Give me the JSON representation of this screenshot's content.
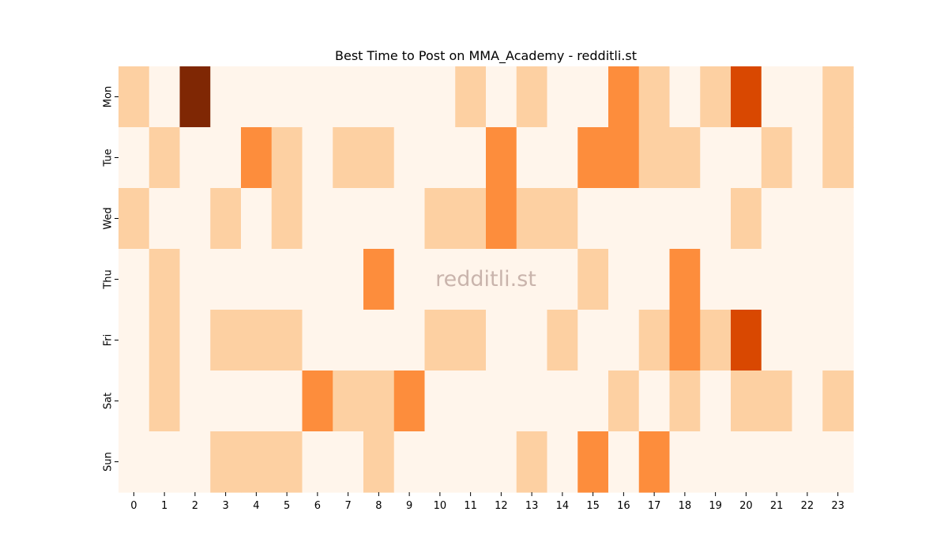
{
  "chart_data": {
    "type": "heatmap",
    "title": "Best Time to Post on MMA_Academy - redditli.st",
    "watermark": "redditli.st",
    "xlabel": "",
    "ylabel": "",
    "x_categories": [
      "0",
      "1",
      "2",
      "3",
      "4",
      "5",
      "6",
      "7",
      "8",
      "9",
      "10",
      "11",
      "12",
      "13",
      "14",
      "15",
      "16",
      "17",
      "18",
      "19",
      "20",
      "21",
      "22",
      "23"
    ],
    "y_categories": [
      "Mon",
      "Tue",
      "Wed",
      "Thu",
      "Fri",
      "Sat",
      "Sun"
    ],
    "values": [
      [
        1,
        0,
        4,
        0,
        0,
        0,
        0,
        0,
        0,
        0,
        0,
        1,
        0,
        1,
        0,
        0,
        2,
        1,
        0,
        1,
        3,
        0,
        0,
        1
      ],
      [
        0,
        1,
        0,
        0,
        2,
        1,
        0,
        1,
        1,
        0,
        0,
        0,
        2,
        0,
        0,
        2,
        2,
        1,
        1,
        0,
        0,
        1,
        0,
        1
      ],
      [
        1,
        0,
        0,
        1,
        0,
        1,
        0,
        0,
        0,
        0,
        1,
        1,
        2,
        1,
        1,
        0,
        0,
        0,
        0,
        0,
        1,
        0,
        0,
        0
      ],
      [
        0,
        1,
        0,
        0,
        0,
        0,
        0,
        0,
        2,
        0,
        0,
        0,
        0,
        0,
        0,
        1,
        0,
        0,
        2,
        0,
        0,
        0,
        0,
        0
      ],
      [
        0,
        1,
        0,
        1,
        1,
        1,
        0,
        0,
        0,
        0,
        1,
        1,
        0,
        0,
        1,
        0,
        0,
        1,
        2,
        1,
        3,
        0,
        0,
        0
      ],
      [
        0,
        1,
        0,
        0,
        0,
        0,
        2,
        1,
        1,
        2,
        0,
        0,
        0,
        0,
        0,
        0,
        1,
        0,
        1,
        0,
        1,
        1,
        0,
        1
      ],
      [
        0,
        0,
        0,
        1,
        1,
        1,
        0,
        0,
        1,
        0,
        0,
        0,
        0,
        1,
        0,
        2,
        0,
        2,
        0,
        0,
        0,
        0,
        0,
        0
      ]
    ],
    "colormap": "Oranges",
    "color_levels": [
      "#fff5eb",
      "#fdd0a2",
      "#fd8d3c",
      "#d94801",
      "#7f2704"
    ],
    "colorbar": false,
    "grid": false
  }
}
